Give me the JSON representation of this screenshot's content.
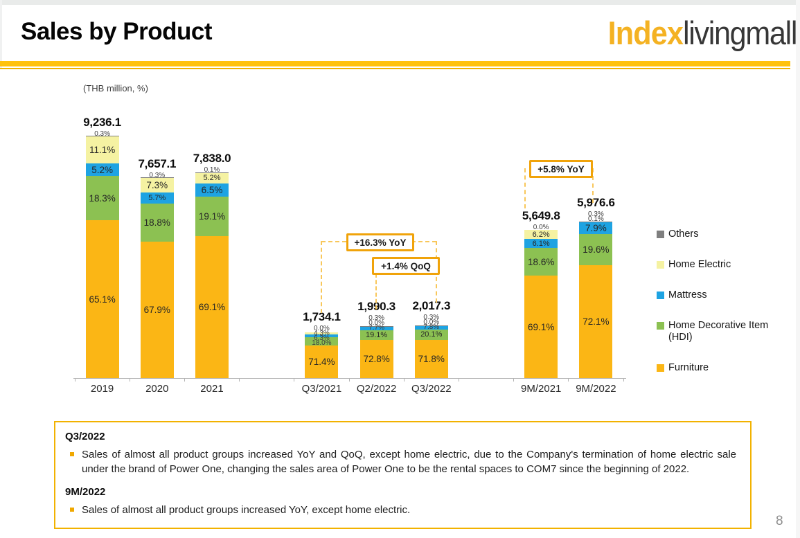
{
  "header": {
    "title": "Sales by Product",
    "logo_primary": "Index",
    "logo_secondary": "livingmall"
  },
  "chart_data": {
    "type": "bar",
    "stacked": true,
    "unit_label": "(THB million, %)",
    "categories": [
      "2019",
      "2020",
      "2021",
      "Q3/2021",
      "Q2/2022",
      "Q3/2022",
      "9M/2021",
      "9M/2022"
    ],
    "group_sizes": [
      3,
      3,
      2
    ],
    "totals": [
      9236.1,
      7657.1,
      7838.0,
      1734.1,
      1990.3,
      2017.3,
      5649.8,
      5976.6
    ],
    "total_labels": [
      "9,236.1",
      "7,657.1",
      "7,838.0",
      "1,734.1",
      "1,990.3",
      "2,017.3",
      "5,649.8",
      "5,976.6"
    ],
    "series": [
      {
        "name": "Furniture",
        "color": "#FBB615",
        "values": [
          65.1,
          67.9,
          69.1,
          71.4,
          72.8,
          71.8,
          69.1,
          72.1
        ]
      },
      {
        "name": "Home Decorative Item (HDI)",
        "color": "#8CC152",
        "values": [
          18.3,
          18.8,
          19.1,
          18.0,
          19.1,
          20.1,
          18.6,
          19.6
        ]
      },
      {
        "name": "Mattress",
        "color": "#1EA3E2",
        "values": [
          5.2,
          5.7,
          6.5,
          6.3,
          7.7,
          7.8,
          6.1,
          7.9
        ]
      },
      {
        "name": "Home Electric",
        "color": "#F5F2A2",
        "values": [
          11.1,
          7.3,
          5.2,
          4.3,
          0.0,
          0.0,
          6.2,
          0.1
        ]
      },
      {
        "name": "Others",
        "color": "#7F7F7F",
        "values": [
          0.3,
          0.3,
          0.1,
          0.0,
          0.3,
          0.3,
          0.0,
          0.3
        ]
      }
    ],
    "legend": [
      {
        "label": "Others",
        "color": "#7F7F7F"
      },
      {
        "label": "Home Electric",
        "color": "#F5F2A2"
      },
      {
        "label": "Mattress",
        "color": "#1EA3E2"
      },
      {
        "label": "Home Decorative Item (HDI)",
        "color": "#8CC152"
      },
      {
        "label": "Furniture",
        "color": "#FBB615"
      }
    ],
    "legend_position": "right",
    "annotations": [
      {
        "label": "+16.3% YoY",
        "from": "Q3/2021",
        "to": "Q3/2022"
      },
      {
        "label": "+1.4% QoQ",
        "from": "Q2/2022",
        "to": "Q3/2022"
      },
      {
        "label": "+5.8% YoY",
        "from": "9M/2021",
        "to": "9M/2022"
      }
    ],
    "value_label_format": "percent_one_decimal",
    "axis_color": "#B3B3B3"
  },
  "notes": {
    "q3_heading": "Q3/2022",
    "q3_text": "Sales of almost all product groups increased YoY and QoQ, except home electric, due to the Company's termination of home electric sale under the brand of Power One, changing the sales area of Power One to be the rental spaces to COM7 since the beginning of 2022.",
    "m9_heading": "9M/2022",
    "m9_text": "Sales of almost all product groups increased YoY, except home electric."
  },
  "page_number": "8",
  "colors": {
    "accent_yellow": "#FFC20E",
    "annotation_border": "#F0A30A",
    "logo_amber": "#F4B223"
  }
}
